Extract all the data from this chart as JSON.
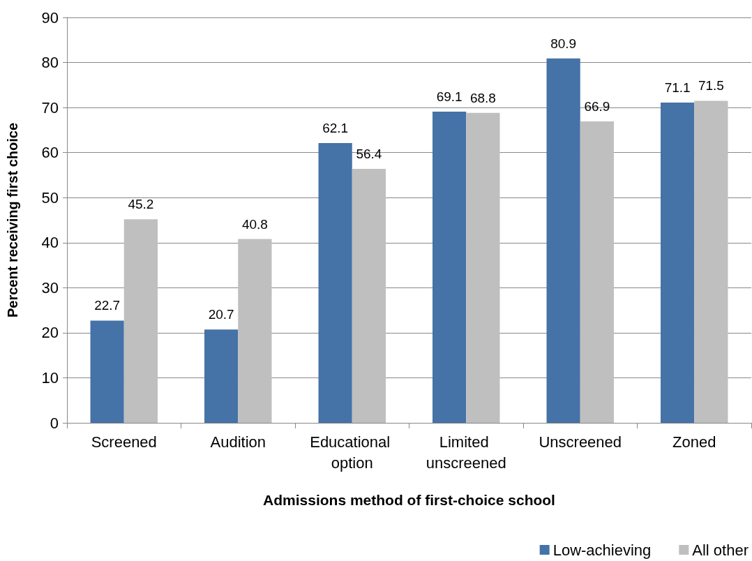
{
  "chart_data": {
    "type": "bar",
    "xlabel": "Admissions method of first-choice school",
    "ylabel": "Percent receiving first choice",
    "categories": [
      "Screened",
      "Audition",
      "Educational option",
      "Limited unscreened",
      "Unscreened",
      "Zoned"
    ],
    "series": [
      {
        "name": "Low-achieving",
        "color": "#4572a7",
        "values": [
          22.7,
          20.7,
          62.1,
          69.1,
          80.9,
          71.1
        ]
      },
      {
        "name": "All other",
        "color": "#bfbfbf",
        "values": [
          45.2,
          40.8,
          56.4,
          68.8,
          66.9,
          71.5
        ]
      }
    ],
    "ylim": [
      0,
      90
    ],
    "yticks": [
      0,
      10,
      20,
      30,
      40,
      50,
      60,
      70,
      80,
      90
    ],
    "grid": "y",
    "legend": "bottom right",
    "data_labels": true
  }
}
